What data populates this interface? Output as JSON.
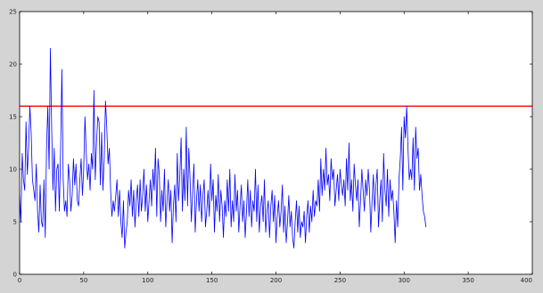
{
  "chart_data": {
    "type": "line",
    "title": "",
    "xlabel": "",
    "ylabel": "",
    "xlim": [
      0,
      400
    ],
    "ylim": [
      0,
      25
    ],
    "x_ticks": [
      0,
      50,
      100,
      150,
      200,
      250,
      300,
      350,
      400
    ],
    "y_ticks": [
      0,
      5,
      10,
      15,
      20,
      25
    ],
    "grid": false,
    "legend": "none",
    "threshold": {
      "y": 16,
      "color": "#ff0000"
    },
    "series": [
      {
        "color": "#0000ff",
        "x_start": 0,
        "x_step": 1,
        "values": [
          7.5,
          5,
          11.5,
          9,
          8,
          14.5,
          9.5,
          12,
          16,
          13.5,
          9,
          8,
          7,
          10.5,
          6,
          4,
          8.5,
          5,
          4.5,
          9,
          3.5,
          12,
          16,
          10,
          21.5,
          14,
          8,
          12,
          6,
          10,
          10.5,
          6,
          12,
          19.5,
          9,
          6,
          7,
          5.5,
          10.5,
          9,
          6,
          7.5,
          11,
          8.5,
          10.5,
          7,
          6.5,
          9,
          11,
          7.5,
          10,
          15,
          11.5,
          9,
          10.5,
          8,
          11.5,
          10,
          17.5,
          9,
          12.5,
          15,
          14.5,
          8.5,
          13.5,
          8,
          11,
          16.5,
          14,
          10.5,
          12,
          8,
          5.5,
          7,
          6,
          7.5,
          9,
          5.5,
          8,
          5,
          3.5,
          7,
          2.5,
          4,
          5,
          8,
          6.5,
          9,
          5.5,
          8,
          4.5,
          7,
          8.5,
          5.5,
          9,
          6,
          7.5,
          10,
          6,
          8.5,
          5,
          7,
          9,
          6.5,
          10,
          8,
          12,
          5.5,
          11,
          9.5,
          5,
          8,
          6,
          10,
          4.5,
          7,
          9,
          6,
          8,
          3,
          6.5,
          8.5,
          5,
          11.5,
          7,
          9.5,
          13,
          6,
          10,
          7,
          14,
          6.5,
          12,
          9,
          5,
          8,
          10.5,
          4,
          7,
          9,
          6,
          8.5,
          5,
          7.5,
          9,
          4.5,
          6,
          8,
          5.5,
          10.5,
          7,
          9,
          4,
          7.5,
          6,
          9.5,
          5,
          8,
          6.5,
          3.5,
          7,
          5.5,
          9,
          6,
          10,
          4.5,
          7,
          5,
          9.5,
          6,
          8,
          4,
          6.5,
          8.5,
          5,
          7,
          3.5,
          6,
          9,
          5.5,
          8,
          4.5,
          7,
          6,
          10,
          5,
          8.5,
          4,
          6.5,
          7.5,
          5,
          9,
          4,
          6,
          7,
          3.5,
          6.5,
          8,
          5,
          7.5,
          3,
          5.5,
          7,
          4.5,
          6,
          8.5,
          4,
          6.5,
          3,
          5,
          7.5,
          4.5,
          6,
          3.5,
          2.5,
          5,
          7,
          4,
          6.5,
          3.5,
          5,
          4.5,
          6,
          3,
          5.5,
          7,
          4,
          6.5,
          5,
          8,
          5.5,
          7,
          6.5,
          9,
          6,
          11,
          7.5,
          10,
          8,
          12,
          8.5,
          9.5,
          7,
          11,
          9,
          10,
          6.5,
          8,
          9.5,
          7,
          10,
          8.5,
          7.5,
          9,
          6.5,
          11,
          8,
          12.5,
          7,
          9,
          6,
          10.5,
          8.5,
          7,
          9,
          4.5,
          7,
          10,
          8,
          6,
          9,
          7.5,
          10,
          8,
          4,
          7,
          9.5,
          6,
          8.5,
          10,
          4.5,
          7,
          9,
          5,
          11.5,
          8,
          6.5,
          10,
          5.5,
          9,
          7,
          8,
          6,
          3,
          7,
          4.5,
          9,
          11,
          14,
          8,
          15,
          13,
          16,
          12,
          9,
          10,
          9,
          13,
          8,
          14,
          11,
          12,
          8,
          9.5,
          7.5,
          6,
          5.5,
          4.5
        ]
      }
    ]
  }
}
